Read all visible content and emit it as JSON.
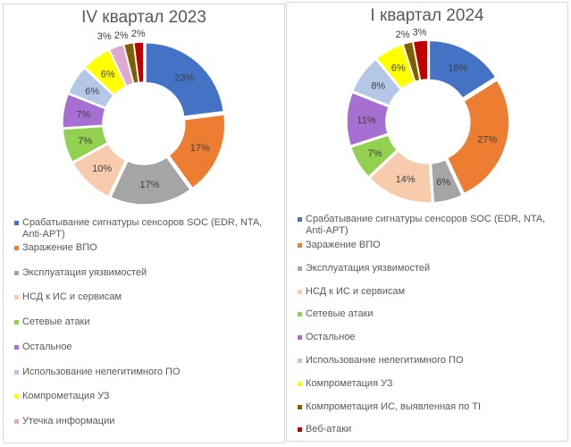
{
  "chart_data": [
    {
      "type": "pie",
      "title": "IV квартал 2023",
      "categories": [
        "Срабатывание сигнатуры сенсоров SOC (EDR, NTA, Anti-APT)",
        "Заражение ВПО",
        "Эксплуатация уязвимостей",
        "НСД к ИС и сервисам",
        "Сетевые атаки",
        "Остальное",
        "Использование нелегитимного ПО",
        "Компрометация УЗ",
        "Утечка информации",
        "",
        ""
      ],
      "values": [
        23,
        17,
        17,
        10,
        7,
        7,
        6,
        6,
        3,
        2,
        2
      ],
      "labels": [
        "23%",
        "17%",
        "17%",
        "10%",
        "7%",
        "7%",
        "6%",
        "6%",
        "3%",
        "2%",
        "2%"
      ],
      "colors": [
        "#4472c4",
        "#ed7d31",
        "#a5a5a5",
        "#f8cbad",
        "#92d050",
        "#a66fd1",
        "#b4c7e7",
        "#ffff00",
        "#e0a7d0",
        "#7f6000",
        "#c00000"
      ],
      "legend": [
        "Срабатывание сигнатуры сенсоров SOC (EDR, NTA, Anti-APT)",
        "Заражение ВПО",
        "Эксплуатация уязвимостей",
        "НСД к ИС и сервисам",
        "Сетевые атаки",
        "Остальное",
        "Использование нелегитимного ПО",
        "Компрометация УЗ",
        "Утечка информации"
      ],
      "legend_placement": "bottom",
      "donut": true
    },
    {
      "type": "pie",
      "title": "I квартал 2024",
      "categories": [
        "Срабатывание сигнатуры сенсоров SOC (EDR, NTA, Anti-APT)",
        "Заражение ВПО",
        "Эксплуатация уязвимостей",
        "НСД к ИС и сервисам",
        "Сетевые атаки",
        "Остальное",
        "Использование нелегитимного ПО",
        "Компрометация УЗ",
        "Компрометация ИС, выявленная по TI",
        "Веб-атаки"
      ],
      "values": [
        16,
        27,
        6,
        14,
        7,
        11,
        8,
        6,
        2,
        3
      ],
      "labels": [
        "16%",
        "27%",
        "6%",
        "14%",
        "7%",
        "11%",
        "8%",
        "6%",
        "2%",
        "3%"
      ],
      "colors": [
        "#4472c4",
        "#ed7d31",
        "#a5a5a5",
        "#f8cbad",
        "#92d050",
        "#a66fd1",
        "#b4c7e7",
        "#ffff00",
        "#7f6000",
        "#c00000"
      ],
      "legend": [
        "Срабатывание сигнатуры сенсоров SOC (EDR, NTA, Anti-APT)",
        "Заражение ВПО",
        "Эксплуатация уязвимостей",
        "НСД к ИС и сервисам",
        "Сетевые атаки",
        "Остальное",
        "Использование нелегитимного ПО",
        "Компрометация УЗ",
        "Компрометация ИС, выявленная по TI",
        "Веб-атаки"
      ],
      "legend_placement": "bottom",
      "donut": true
    }
  ]
}
